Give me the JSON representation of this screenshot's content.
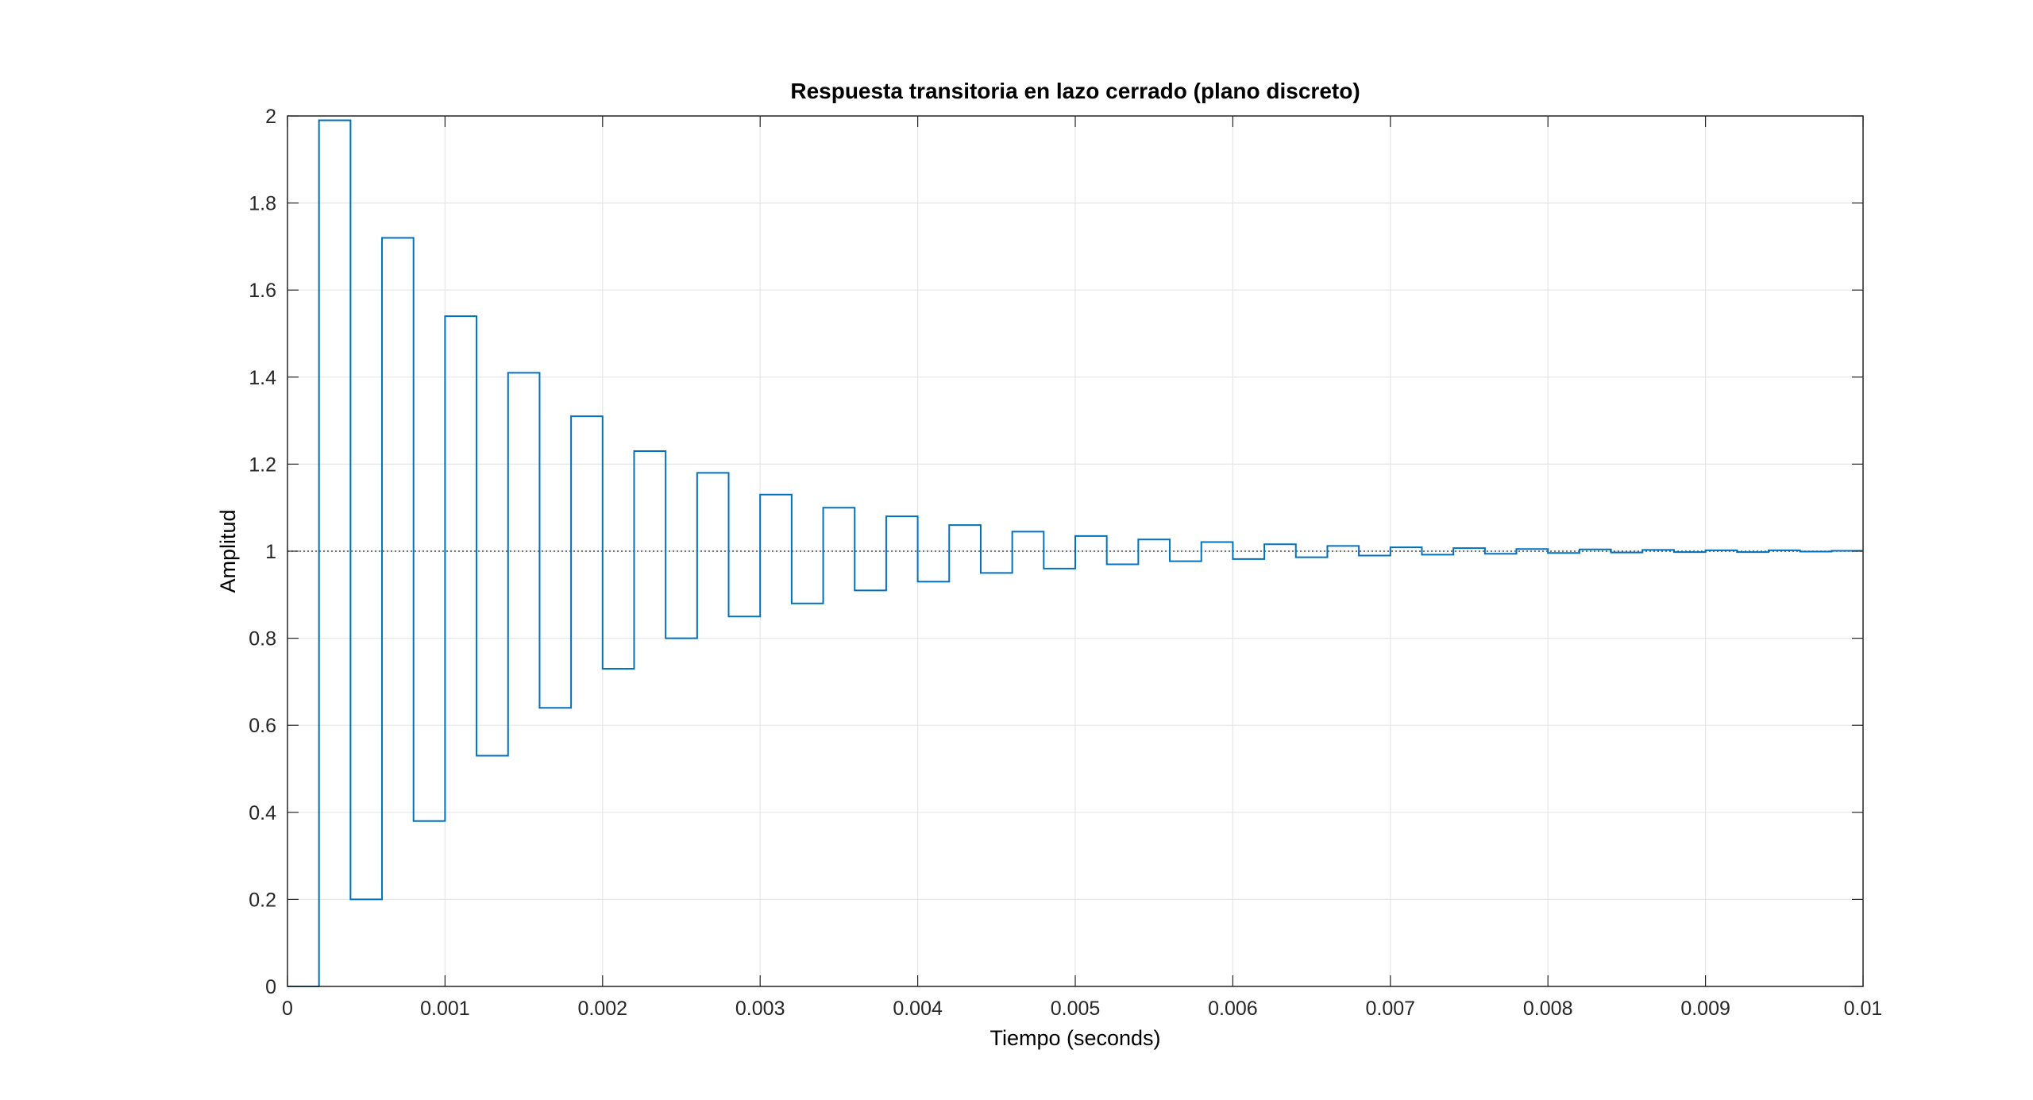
{
  "chart_data": {
    "type": "line",
    "plot_style": "stairs",
    "title": "Respuesta transitoria en lazo cerrado (plano discreto)",
    "xlabel": "Tiempo (seconds)",
    "ylabel": "Amplitud",
    "xlim": [
      0,
      0.01
    ],
    "ylim": [
      0,
      2
    ],
    "grid": true,
    "legend": "none",
    "x_ticks": [
      "0",
      "0.001",
      "0.002",
      "0.003",
      "0.004",
      "0.005",
      "0.006",
      "0.007",
      "0.008",
      "0.009",
      "0.01"
    ],
    "y_ticks": [
      "0",
      "0.2",
      "0.4",
      "0.6",
      "0.8",
      "1",
      "1.2",
      "1.4",
      "1.6",
      "1.8",
      "2"
    ],
    "reference_line": {
      "y": 1,
      "style": "dotted",
      "color": "#4d4d4d"
    },
    "sample_time": 0.0002,
    "series": [
      {
        "color": "#0072BD",
        "x": [
          0,
          0.0002,
          0.0004,
          0.0006,
          0.0008,
          0.001,
          0.0012,
          0.0014,
          0.0016,
          0.0018,
          0.002,
          0.0022,
          0.0024,
          0.0026,
          0.0028,
          0.003,
          0.0032,
          0.0034,
          0.0036,
          0.0038,
          0.004,
          0.0042,
          0.0044,
          0.0046,
          0.0048,
          0.005,
          0.0052,
          0.0054,
          0.0056,
          0.0058,
          0.006,
          0.0062,
          0.0064,
          0.0066,
          0.0068,
          0.007,
          0.0072,
          0.0074,
          0.0076,
          0.0078,
          0.008,
          0.0082,
          0.0084,
          0.0086,
          0.0088,
          0.009,
          0.0092,
          0.0094,
          0.0096,
          0.0098
        ],
        "values": [
          0,
          1.99,
          0.2,
          1.72,
          0.38,
          1.54,
          0.53,
          1.41,
          0.64,
          1.31,
          0.73,
          1.23,
          0.8,
          1.18,
          0.85,
          1.13,
          0.88,
          1.1,
          0.91,
          1.08,
          0.93,
          1.06,
          0.95,
          1.045,
          0.96,
          1.035,
          0.97,
          1.027,
          0.977,
          1.021,
          0.982,
          1.016,
          0.986,
          1.012,
          0.99,
          1.009,
          0.992,
          1.007,
          0.994,
          1.005,
          0.996,
          1.004,
          0.997,
          1.003,
          0.998,
          1.002,
          0.998,
          1.002,
          0.999,
          1.001
        ]
      }
    ]
  }
}
